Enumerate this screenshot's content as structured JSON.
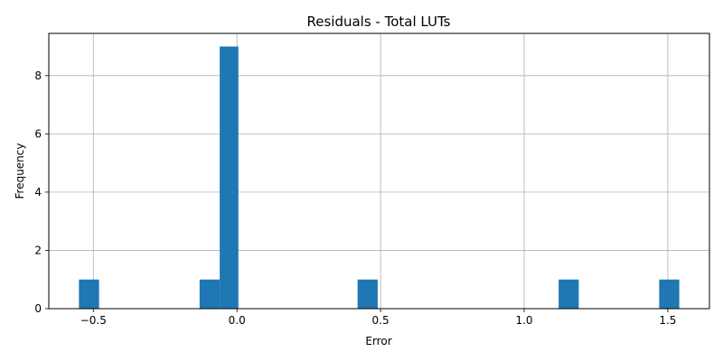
{
  "chart_data": {
    "type": "bar",
    "title": "Residuals - Total LUTs",
    "xlabel": "Error",
    "ylabel": "Frequency",
    "xlim": [
      -0.655,
      1.645
    ],
    "ylim": [
      0,
      9.45
    ],
    "xticks": [
      -0.5,
      0.0,
      0.5,
      1.0,
      1.5
    ],
    "xtick_labels": [
      "−0.5",
      "0.0",
      "0.5",
      "1.0",
      "1.5"
    ],
    "yticks": [
      0,
      2,
      4,
      6,
      8
    ],
    "ytick_labels": [
      "0",
      "2",
      "4",
      "6",
      "8"
    ],
    "grid": true,
    "bar_color": "#1f77b4",
    "bins": [
      {
        "x0": -0.55,
        "x1": -0.48,
        "count": 1
      },
      {
        "x0": -0.13,
        "x1": -0.06,
        "count": 1
      },
      {
        "x0": -0.06,
        "x1": 0.005,
        "count": 9
      },
      {
        "x0": 0.42,
        "x1": 0.49,
        "count": 1
      },
      {
        "x0": 1.12,
        "x1": 1.19,
        "count": 1
      },
      {
        "x0": 1.47,
        "x1": 1.54,
        "count": 1
      }
    ]
  }
}
